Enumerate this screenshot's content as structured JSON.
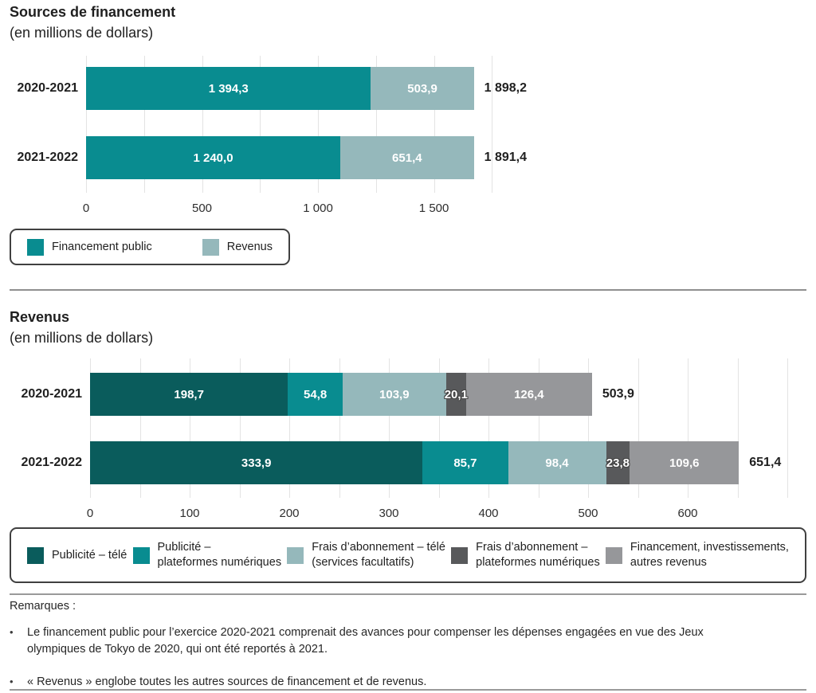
{
  "chart_data": [
    {
      "type": "bar",
      "orientation": "horizontal",
      "stacked": true,
      "title": "Sources de financement",
      "subtitle": "(en millions de dollars)",
      "categories": [
        "2020-2021",
        "2021-2022"
      ],
      "series": [
        {
          "name": "Financement public",
          "color": "#098c90",
          "values": [
            1394.3,
            1240.0
          ],
          "labels": [
            "1 394,3",
            "1 240,0"
          ]
        },
        {
          "name": "Revenus",
          "color": "#95b8bb",
          "values": [
            503.9,
            651.4
          ],
          "labels": [
            "503,9",
            "651,4"
          ]
        }
      ],
      "totals": {
        "values": [
          1898.2,
          1891.4
        ],
        "labels": [
          "1 898,2",
          "1 891,4"
        ]
      },
      "axis": {
        "xmax": 1900,
        "grid_step": 250,
        "grid_max": 1750,
        "ticks": [
          {
            "value": 0,
            "label": "0"
          },
          {
            "value": 500,
            "label": "500"
          },
          {
            "value": 1000,
            "label": "1 000"
          },
          {
            "value": 1500,
            "label": "1 500"
          }
        ]
      },
      "legend_position": "bottom-left"
    },
    {
      "type": "bar",
      "orientation": "horizontal",
      "stacked": true,
      "title": "Revenus",
      "subtitle": "(en millions de dollars)",
      "categories": [
        "2020-2021",
        "2021-2022"
      ],
      "series": [
        {
          "name": "Publicité – télé",
          "color": "#0a5c5c",
          "values": [
            198.7,
            333.9
          ],
          "labels": [
            "198,7",
            "333,9"
          ]
        },
        {
          "name": "Publicité –\nplateformes numériques",
          "color": "#098c90",
          "values": [
            54.8,
            85.7
          ],
          "labels": [
            "54,8",
            "85,7"
          ]
        },
        {
          "name": "Frais d’abonnement – télé\n(services facultatifs)",
          "color": "#95b8bb",
          "values": [
            103.9,
            98.4
          ],
          "labels": [
            "103,9",
            "98,4"
          ]
        },
        {
          "name": "Frais d’abonnement –\nplateformes numériques",
          "color": "#58595b",
          "values": [
            20.1,
            23.8
          ],
          "labels": [
            "20,1",
            "23,8"
          ]
        },
        {
          "name": "Financement, investissements,\nautres revenus",
          "color": "#96979a",
          "values": [
            126.4,
            109.6
          ],
          "labels": [
            "126,4",
            "109,6"
          ]
        }
      ],
      "totals": {
        "values": [
          503.9,
          651.4
        ],
        "labels": [
          "503,9",
          "651,4"
        ]
      },
      "axis": {
        "xmax": 700,
        "grid_step": 50,
        "grid_max": 700,
        "ticks": [
          {
            "value": 0,
            "label": "0"
          },
          {
            "value": 100,
            "label": "100"
          },
          {
            "value": 200,
            "label": "200"
          },
          {
            "value": 300,
            "label": "300"
          },
          {
            "value": 400,
            "label": "400"
          },
          {
            "value": 500,
            "label": "500"
          },
          {
            "value": 600,
            "label": "600"
          }
        ]
      },
      "legend_position": "bottom-full-width"
    }
  ],
  "notes": {
    "heading": "Remarques :",
    "bullets": [
      "Le financement public pour l’exercice 2020-2021 comprenait des avances pour compenser les dépenses engagées en vue des Jeux olympiques de Tokyo de 2020, qui ont été reportés à 2021.",
      "« Revenus » englobe toutes les autres sources de financement et de revenus."
    ]
  },
  "colors": {
    "teal": "#098c90",
    "dark_teal": "#0a5c5c",
    "light_blue_gray": "#95b8bb",
    "dark_gray": "#58595b",
    "medium_gray": "#96979a",
    "gridline": "#e3e3e3",
    "divider": "#8f8f8f",
    "text": "#1f1f1f"
  }
}
